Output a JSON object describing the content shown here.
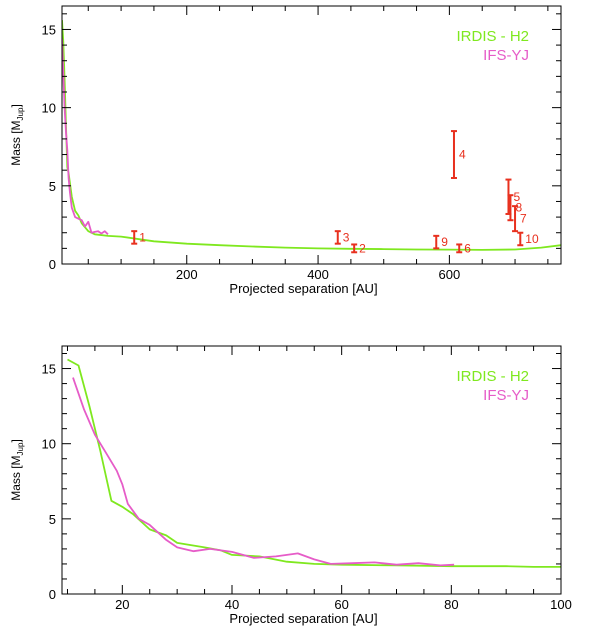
{
  "chart_data": [
    {
      "type": "line",
      "xlabel": "Projected separation [AU]",
      "ylabel_main": "Mass [M",
      "ylabel_sub": "Jup",
      "ylabel_end": "]",
      "xlim": [
        10,
        770
      ],
      "ylim": [
        0,
        16.5
      ],
      "xticks": [
        200,
        400,
        600
      ],
      "yticks": [
        0,
        5,
        10,
        15
      ],
      "legend_position": "top-right",
      "series": [
        {
          "name": "IRDIS - H2",
          "color": "#7FE81F",
          "x": [
            10,
            12,
            14,
            16,
            18,
            20,
            25,
            30,
            35,
            40,
            50,
            60,
            80,
            100,
            150,
            200,
            250,
            300,
            350,
            400,
            450,
            500,
            550,
            600,
            650,
            700,
            740,
            770
          ],
          "y": [
            15.6,
            14.2,
            11.8,
            9.0,
            6.2,
            5.8,
            4.3,
            3.4,
            3.1,
            2.6,
            2.1,
            1.9,
            1.8,
            1.75,
            1.45,
            1.3,
            1.2,
            1.12,
            1.05,
            1.0,
            0.97,
            0.95,
            0.93,
            0.92,
            0.9,
            0.93,
            1.05,
            1.2
          ]
        },
        {
          "name": "IFS-YJ",
          "color": "#E65CC8",
          "x": [
            10,
            12,
            14,
            16,
            18,
            20,
            22,
            25,
            30,
            35,
            40,
            45,
            50,
            55,
            60,
            65,
            70,
            75,
            80
          ],
          "y": [
            14.4,
            12.2,
            10.0,
            8.5,
            7.3,
            5.5,
            4.6,
            3.6,
            3.0,
            2.9,
            2.8,
            2.4,
            2.7,
            2.0,
            2.05,
            2.1,
            1.95,
            2.1,
            1.9
          ]
        }
      ],
      "error_points": {
        "color": "#E8301E",
        "points": [
          {
            "label": "1",
            "x": 120,
            "y": 1.7,
            "ylow": 1.3,
            "yhigh": 2.1
          },
          {
            "label": "2",
            "x": 455,
            "y": 1.0,
            "ylow": 0.75,
            "yhigh": 1.25
          },
          {
            "label": "3",
            "x": 430,
            "y": 1.7,
            "ylow": 1.3,
            "yhigh": 2.1
          },
          {
            "label": "4",
            "x": 607,
            "y": 7.0,
            "ylow": 5.5,
            "yhigh": 8.5
          },
          {
            "label": "5",
            "x": 690,
            "y": 4.3,
            "ylow": 3.2,
            "yhigh": 5.4
          },
          {
            "label": "6",
            "x": 615,
            "y": 1.0,
            "ylow": 0.75,
            "yhigh": 1.25
          },
          {
            "label": "7",
            "x": 700,
            "y": 2.9,
            "ylow": 2.1,
            "yhigh": 3.7
          },
          {
            "label": "8",
            "x": 693,
            "y": 3.6,
            "ylow": 2.8,
            "yhigh": 4.4
          },
          {
            "label": "9",
            "x": 580,
            "y": 1.4,
            "ylow": 1.0,
            "yhigh": 1.8
          },
          {
            "label": "10",
            "x": 708,
            "y": 1.6,
            "ylow": 1.2,
            "yhigh": 2.0
          }
        ]
      }
    },
    {
      "type": "line",
      "xlabel": "Projected separation [AU]",
      "ylabel_main": "Mass [M",
      "ylabel_sub": "Jup",
      "ylabel_end": "]",
      "xlim": [
        9,
        100
      ],
      "ylim": [
        0,
        16.5
      ],
      "xticks": [
        20,
        40,
        60,
        80,
        100
      ],
      "yticks": [
        0,
        5,
        10,
        15
      ],
      "legend_position": "top-right",
      "series": [
        {
          "name": "IRDIS - H2",
          "color": "#7FE81F",
          "x": [
            10,
            12,
            14,
            16,
            18,
            20,
            22,
            25,
            28,
            30,
            35,
            38,
            40,
            45,
            50,
            55,
            60,
            70,
            80,
            90,
            95,
            100
          ],
          "y": [
            15.6,
            15.2,
            12.5,
            9.5,
            6.2,
            5.8,
            5.3,
            4.3,
            3.9,
            3.4,
            3.1,
            2.9,
            2.6,
            2.5,
            2.15,
            2.0,
            1.95,
            1.9,
            1.85,
            1.85,
            1.8,
            1.8
          ]
        },
        {
          "name": "IFS-YJ",
          "color": "#E65CC8",
          "x": [
            11,
            13,
            15,
            17,
            19,
            20,
            21,
            23,
            25,
            28,
            30,
            33,
            36,
            40,
            44,
            48,
            52,
            55,
            58,
            62,
            66,
            70,
            74,
            78,
            80.5
          ],
          "y": [
            14.4,
            12.3,
            10.6,
            9.4,
            8.2,
            7.3,
            6.0,
            5.0,
            4.6,
            3.6,
            3.1,
            2.85,
            3.0,
            2.8,
            2.4,
            2.5,
            2.7,
            2.3,
            2.0,
            2.05,
            2.1,
            1.95,
            2.05,
            1.9,
            1.95
          ]
        }
      ]
    }
  ]
}
